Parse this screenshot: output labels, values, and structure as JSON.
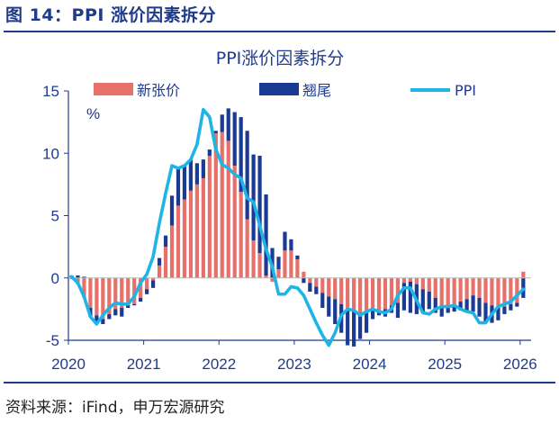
{
  "figure_title": "图 14：PPI 涨价因素拆分",
  "source": "资料来源：iFind，申万宏源研究",
  "colors": {
    "new_rise": "#e8706a",
    "carryover": "#1a3a93",
    "ppi": "#1fb4e6",
    "text": "#1f3b8c"
  },
  "chart_data": {
    "type": "bar+line",
    "title": "PPI涨价因素拆分",
    "ylabel": "%",
    "ylim": [
      -5,
      15
    ],
    "yticks": [
      -5,
      0,
      5,
      10,
      15
    ],
    "x_tick_labels": [
      "2020",
      "2021",
      "2022",
      "2023",
      "2024",
      "2025",
      "2026"
    ],
    "x_tick_years": [
      2020,
      2021,
      2022,
      2023,
      2024,
      2025,
      2026
    ],
    "start": "2020-01",
    "legend": [
      "新张价",
      "翘尾",
      "PPI"
    ],
    "series": [
      {
        "name": "新张价",
        "kind": "bar",
        "values": [
          -0.1,
          -0.5,
          -1.6,
          -2.4,
          -3.0,
          -3.3,
          -2.9,
          -2.5,
          -2.4,
          -2.2,
          -2.1,
          -1.6,
          -0.9,
          -0.2,
          1.0,
          2.5,
          4.2,
          5.8,
          6.3,
          7.0,
          7.5,
          8.0,
          9.8,
          11.6,
          11.7,
          11.0,
          9.0,
          6.9,
          4.7,
          3.0,
          2.0,
          0.2,
          -0.3,
          0.7,
          2.2,
          2.2,
          1.5,
          0.5,
          -0.4,
          -0.7,
          -1.2,
          -1.5,
          -1.7,
          -2.1,
          -2.5,
          -2.6,
          -2.8,
          -2.7,
          -2.5,
          -2.6,
          -2.5,
          -2.2,
          -2.0,
          -0.4,
          -0.3,
          -0.5,
          -0.9,
          -1.1,
          -1.6,
          -2.2,
          -2.4,
          -2.1,
          -1.9,
          -1.7,
          -1.4,
          -1.6,
          -2.0,
          -2.2,
          -2.4,
          -2.3,
          -2.1,
          -2.0,
          0.5
        ]
      },
      {
        "name": "翘尾",
        "kind": "bar",
        "values": [
          0.2,
          0.2,
          0.1,
          -0.7,
          -0.7,
          -0.4,
          -0.4,
          -0.5,
          -0.7,
          -0.2,
          -0.1,
          -0.3,
          -0.4,
          -0.6,
          0.6,
          0.9,
          2.4,
          3.0,
          2.7,
          2.5,
          1.7,
          1.5,
          0.5,
          0.2,
          1.4,
          2.6,
          4.3,
          6.0,
          7.1,
          6.9,
          7.8,
          6.5,
          2.4,
          1.0,
          1.5,
          0.9,
          0.3,
          -0.4,
          -0.7,
          -0.6,
          -1.2,
          -1.6,
          -2.0,
          -2.3,
          -2.9,
          -2.9,
          -2.1,
          -1.7,
          -0.8,
          -0.4,
          -0.6,
          -0.6,
          -1.2,
          -2.2,
          -2.5,
          -2.4,
          -1.9,
          -1.4,
          -1.2,
          -0.9,
          -0.4,
          -0.6,
          -0.7,
          -1.0,
          -1.3,
          -1.5,
          -1.6,
          -1.4,
          -1.0,
          -0.6,
          -0.5,
          -0.3,
          -1.6
        ]
      },
      {
        "name": "PPI",
        "kind": "line",
        "values": [
          0.1,
          -0.4,
          -1.5,
          -3.1,
          -3.7,
          -3.0,
          -2.4,
          -2.0,
          -2.1,
          -2.1,
          -1.5,
          -0.4,
          0.3,
          1.7,
          4.4,
          6.8,
          9.0,
          8.8,
          9.0,
          9.5,
          10.7,
          13.5,
          12.9,
          10.3,
          9.1,
          8.8,
          8.3,
          8.0,
          6.4,
          6.1,
          4.2,
          2.3,
          0.9,
          -1.3,
          -1.3,
          -0.7,
          -0.8,
          -1.4,
          -2.5,
          -3.6,
          -4.6,
          -5.4,
          -4.4,
          -3.0,
          -2.5,
          -2.6,
          -3.0,
          -2.7,
          -2.5,
          -2.7,
          -2.8,
          -2.5,
          -1.4,
          -0.8,
          -0.8,
          -1.8,
          -2.8,
          -2.9,
          -2.5,
          -2.3,
          -2.3,
          -2.2,
          -2.5,
          -2.7,
          -2.8,
          -3.6,
          -3.6,
          -2.9,
          -2.3,
          -2.1,
          -1.9,
          -1.4,
          -0.9
        ]
      }
    ]
  }
}
